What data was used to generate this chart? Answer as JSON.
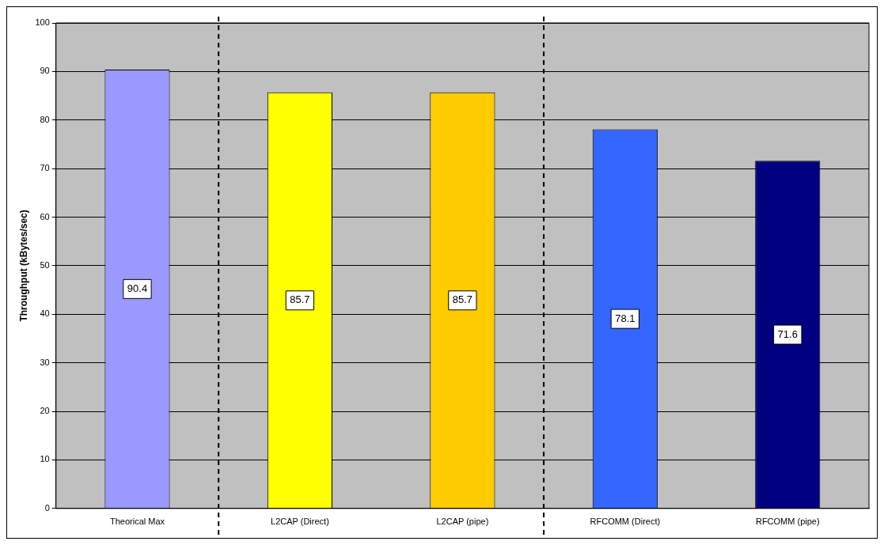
{
  "chart_data": {
    "type": "bar",
    "ylabel": "Throughput (kBytes/sec)",
    "categories": [
      "Theorical Max",
      "L2CAP (Direct)",
      "L2CAP (pipe)",
      "RFCOMM (Direct)",
      "RFCOMM (pipe)"
    ],
    "values": [
      90.4,
      85.7,
      85.7,
      78.1,
      71.6
    ],
    "colors": [
      "#9999ff",
      "#ffff00",
      "#ffcc00",
      "#3366ff",
      "#000080"
    ],
    "ylim": [
      0,
      100
    ],
    "yticks": [
      0,
      10,
      20,
      30,
      40,
      50,
      60,
      70,
      80,
      90,
      100
    ],
    "grid": "y",
    "legend": false,
    "data_labels": true
  }
}
